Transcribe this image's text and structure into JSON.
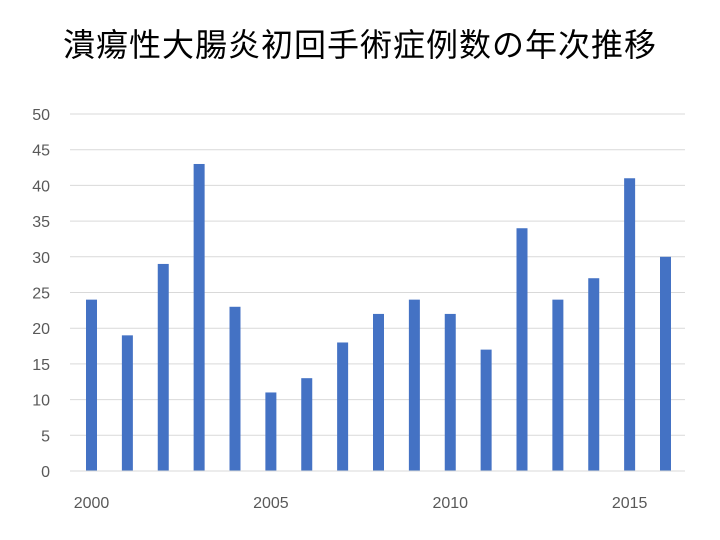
{
  "chart_data": {
    "type": "bar",
    "title": "潰瘍性大腸炎初回手術症例数の年次推移",
    "xlabel": "",
    "ylabel": "",
    "x": [
      2000,
      2001,
      2002,
      2003,
      2004,
      2005,
      2006,
      2007,
      2008,
      2009,
      2010,
      2011,
      2012,
      2013,
      2014,
      2015,
      2016
    ],
    "values": [
      24,
      19,
      29,
      43,
      23,
      11,
      13,
      18,
      22,
      24,
      22,
      17,
      34,
      24,
      27,
      41,
      30
    ],
    "x_ticks": [
      "2000",
      "2005",
      "2010",
      "2015"
    ],
    "y_ticks": [
      "0",
      "5",
      "10",
      "15",
      "20",
      "25",
      "30",
      "35",
      "40",
      "45",
      "50"
    ],
    "ylim": [
      0,
      50
    ],
    "grid": true,
    "legend": "none",
    "bar_color": "#4472C4",
    "grid_color": "#D9D9D9",
    "tick_color": "#595959"
  }
}
